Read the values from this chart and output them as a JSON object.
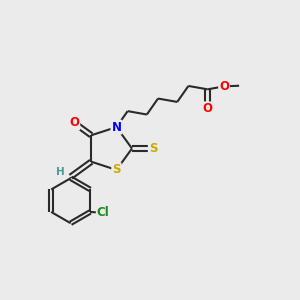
{
  "bg_color": "#ebebeb",
  "bond_color": "#2a2a2a",
  "bond_width": 1.5,
  "atom_colors": {
    "O": "#ff0000",
    "N": "#0000ff",
    "S": "#ccaa00",
    "Cl": "#1a8a1a",
    "H": "#4a9a9a",
    "C": "#2a2a2a"
  },
  "font_size": 8.5,
  "fig_size": [
    3.0,
    3.0
  ],
  "dpi": 100
}
